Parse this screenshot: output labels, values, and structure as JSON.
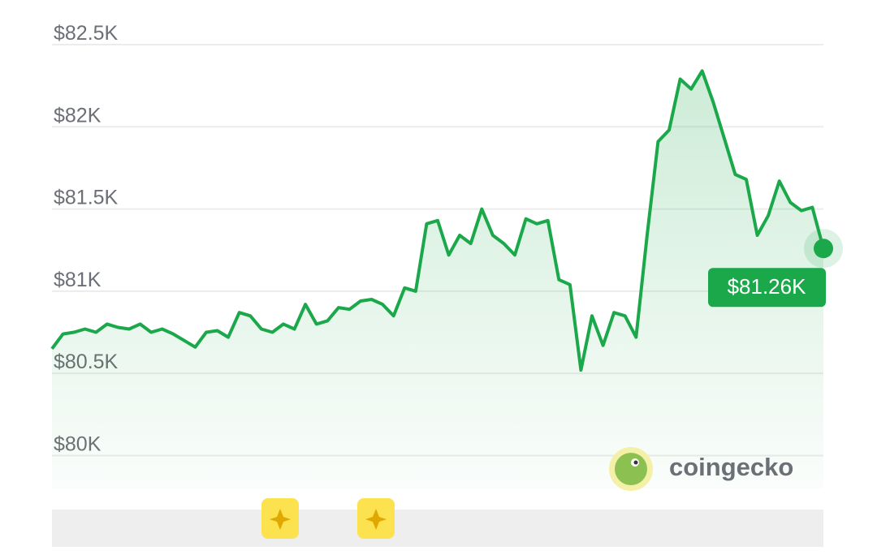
{
  "chart_data": {
    "type": "line",
    "values": [
      80650,
      80740,
      80750,
      80770,
      80750,
      80800,
      80780,
      80770,
      80800,
      80750,
      80770,
      80740,
      80700,
      80660,
      80750,
      80760,
      80720,
      80870,
      80850,
      80770,
      80750,
      80800,
      80770,
      80920,
      80800,
      80820,
      80900,
      80890,
      80940,
      80950,
      80920,
      80850,
      81020,
      81000,
      81410,
      81430,
      81220,
      81340,
      81290,
      81500,
      81340,
      81290,
      81220,
      81440,
      81410,
      81430,
      81070,
      81040,
      80520,
      80850,
      80670,
      80870,
      80850,
      80720,
      81340,
      81910,
      81980,
      82290,
      82230,
      82340,
      82150,
      81930,
      81710,
      81680,
      81340,
      81460,
      81670,
      81540,
      81490,
      81510,
      81260
    ],
    "color": "#1ba84a",
    "ylim": [
      79800,
      82500
    ],
    "yticks": [
      {
        "value": 80000,
        "label": "$80K"
      },
      {
        "value": 80500,
        "label": "$80.5K"
      },
      {
        "value": 81000,
        "label": "$81K"
      },
      {
        "value": 81500,
        "label": "$81.5K"
      },
      {
        "value": 82000,
        "label": "$82K"
      },
      {
        "value": 82500,
        "label": "$82.5K"
      }
    ],
    "grid": true,
    "annotations": [
      {
        "value": 81260,
        "text": "$81.26K"
      }
    ],
    "watermark": "coingecko"
  }
}
